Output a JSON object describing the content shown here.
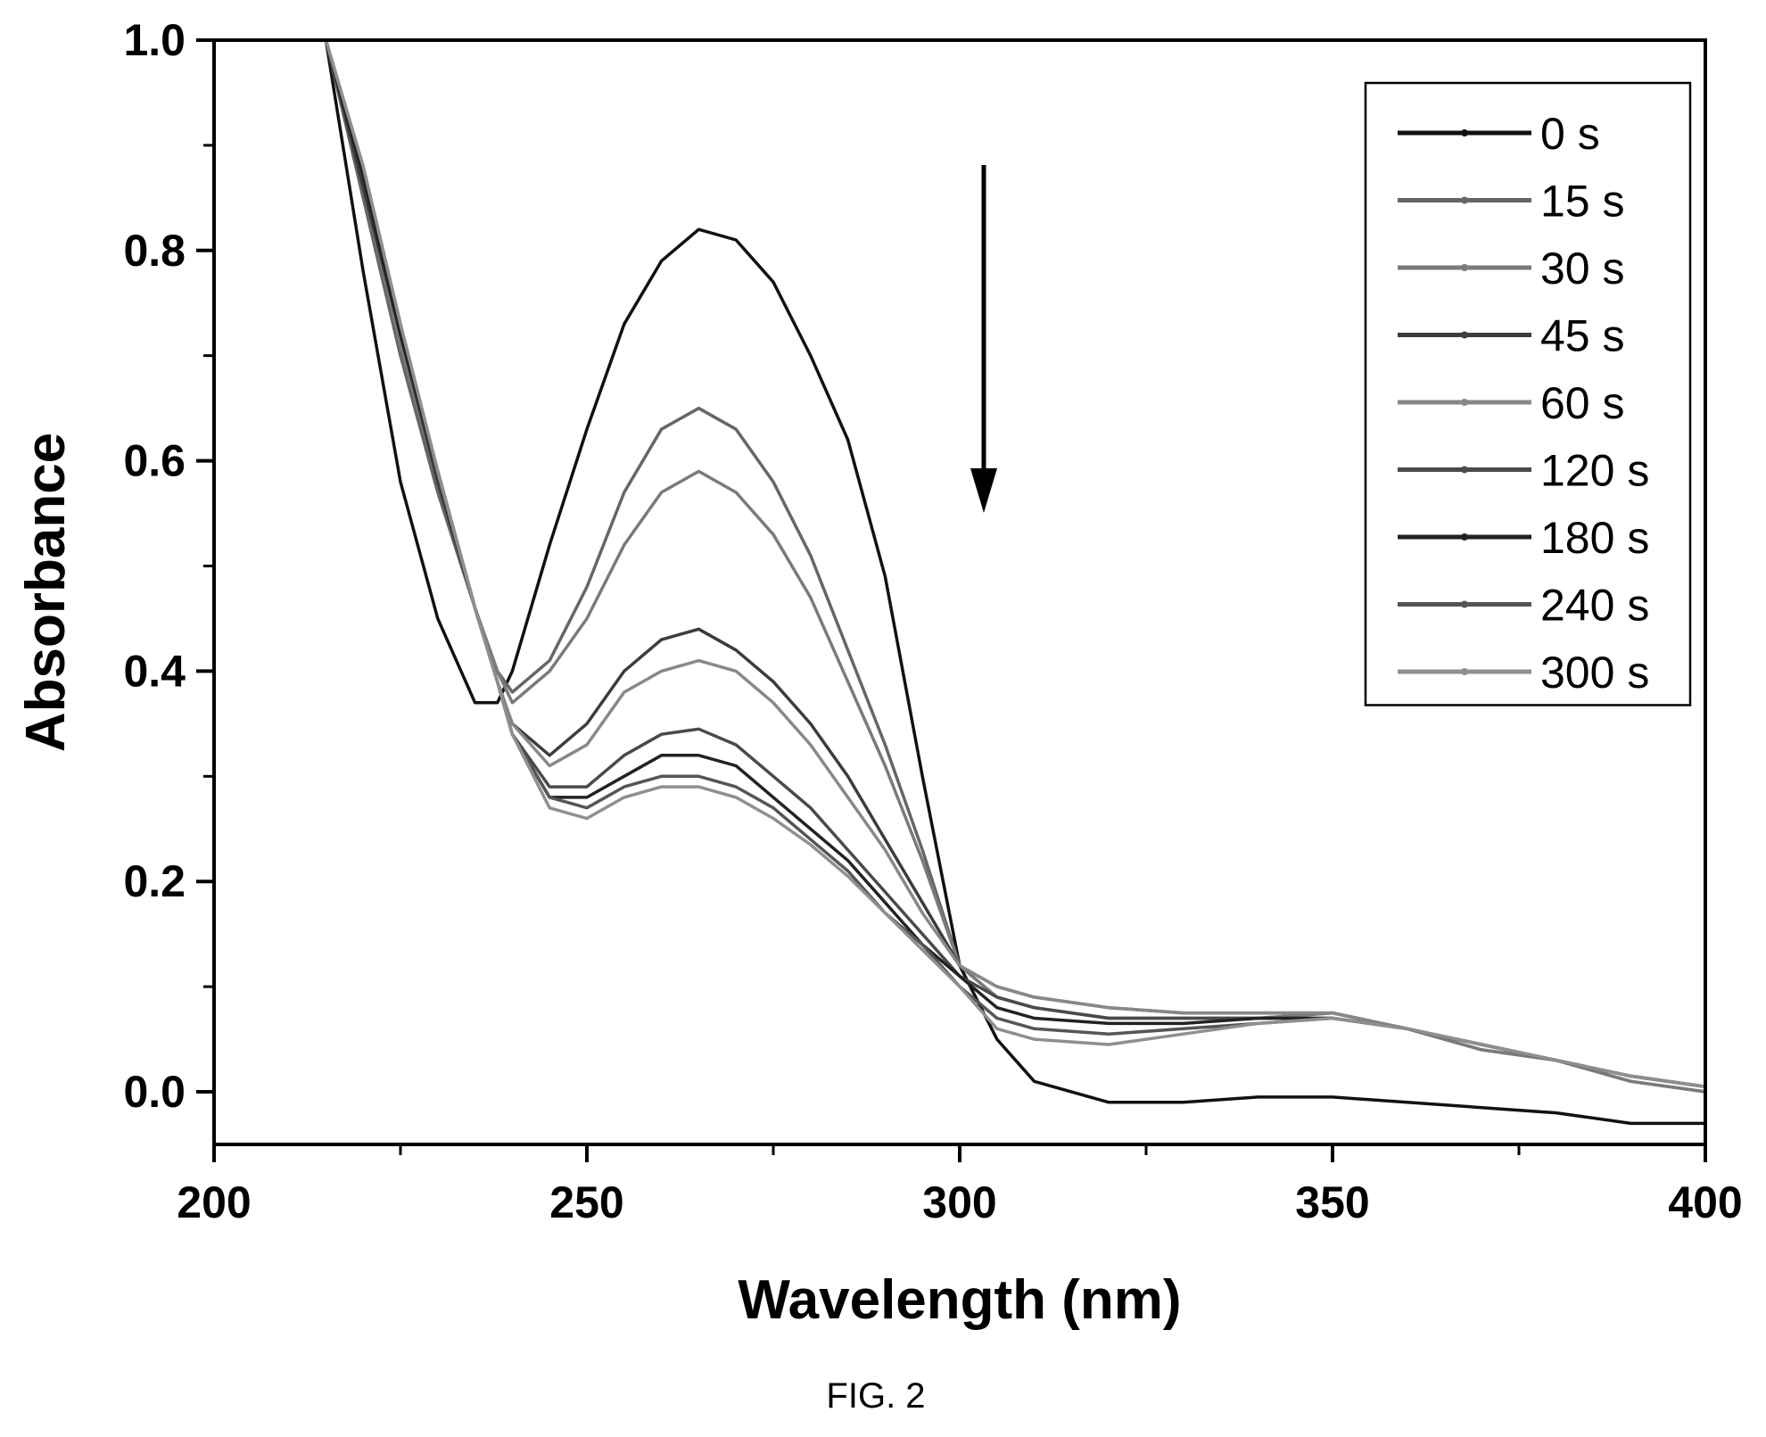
{
  "chart_data": {
    "type": "line",
    "xlabel": "Wavelength (nm)",
    "ylabel": "Absorbance",
    "xlim": [
      200,
      400
    ],
    "ylim": [
      -0.05,
      1.0
    ],
    "x_ticks": [
      200,
      250,
      300,
      350,
      400
    ],
    "y_ticks": [
      0.0,
      0.2,
      0.4,
      0.6,
      0.8,
      1.0
    ],
    "x_tick_labels": [
      "200",
      "250",
      "300",
      "350",
      "400"
    ],
    "y_tick_labels": [
      "0.0",
      "0.2",
      "0.4",
      "0.6",
      "0.8",
      "1.0"
    ],
    "grid": false,
    "legend_position": "top-right",
    "annotation": "downward arrow indicating decreasing absorbance over time",
    "x": [
      215,
      220,
      225,
      230,
      235,
      238,
      240,
      245,
      250,
      255,
      260,
      265,
      270,
      275,
      280,
      285,
      290,
      295,
      300,
      305,
      310,
      320,
      330,
      340,
      350,
      360,
      370,
      380,
      390,
      400
    ],
    "series": [
      {
        "name": "0 s",
        "color": "#111111",
        "values": [
          1.0,
          0.78,
          0.58,
          0.45,
          0.37,
          0.37,
          0.4,
          0.52,
          0.63,
          0.73,
          0.79,
          0.82,
          0.81,
          0.77,
          0.7,
          0.62,
          0.49,
          0.3,
          0.12,
          0.05,
          0.01,
          -0.01,
          -0.01,
          -0.005,
          -0.005,
          -0.01,
          -0.015,
          -0.02,
          -0.03,
          -0.03
        ]
      },
      {
        "name": "15 s",
        "color": "#666666",
        "values": [
          1.0,
          0.85,
          0.7,
          0.57,
          0.46,
          0.4,
          0.38,
          0.41,
          0.48,
          0.57,
          0.63,
          0.65,
          0.63,
          0.58,
          0.51,
          0.42,
          0.33,
          0.23,
          0.12,
          0.09,
          0.08,
          0.07,
          0.07,
          0.07,
          0.075,
          0.06,
          0.04,
          0.03,
          0.01,
          0.0
        ]
      },
      {
        "name": "30 s",
        "color": "#7a7a7a",
        "values": [
          1.0,
          0.86,
          0.71,
          0.58,
          0.46,
          0.4,
          0.37,
          0.4,
          0.45,
          0.52,
          0.57,
          0.59,
          0.57,
          0.53,
          0.47,
          0.39,
          0.31,
          0.22,
          0.12,
          0.09,
          0.08,
          0.07,
          0.07,
          0.07,
          0.075,
          0.06,
          0.04,
          0.03,
          0.01,
          0.0
        ]
      },
      {
        "name": "45 s",
        "color": "#3c3c3c",
        "values": [
          1.0,
          0.86,
          0.72,
          0.58,
          0.46,
          0.39,
          0.35,
          0.32,
          0.35,
          0.4,
          0.43,
          0.44,
          0.42,
          0.39,
          0.35,
          0.3,
          0.24,
          0.18,
          0.12,
          0.1,
          0.09,
          0.08,
          0.075,
          0.075,
          0.075,
          0.06,
          0.045,
          0.03,
          0.015,
          0.005
        ]
      },
      {
        "name": "60 s",
        "color": "#888888",
        "values": [
          1.0,
          0.87,
          0.72,
          0.59,
          0.46,
          0.39,
          0.35,
          0.31,
          0.33,
          0.38,
          0.4,
          0.41,
          0.4,
          0.37,
          0.33,
          0.28,
          0.23,
          0.17,
          0.12,
          0.1,
          0.09,
          0.08,
          0.075,
          0.075,
          0.075,
          0.06,
          0.045,
          0.03,
          0.015,
          0.005
        ]
      },
      {
        "name": "120 s",
        "color": "#4a4a4a",
        "values": [
          1.0,
          0.87,
          0.72,
          0.59,
          0.46,
          0.39,
          0.34,
          0.29,
          0.29,
          0.32,
          0.34,
          0.345,
          0.33,
          0.3,
          0.27,
          0.23,
          0.19,
          0.15,
          0.11,
          0.09,
          0.08,
          0.07,
          0.07,
          0.07,
          0.07,
          0.06,
          0.045,
          0.03,
          0.015,
          0.005
        ]
      },
      {
        "name": "180 s",
        "color": "#222222",
        "values": [
          1.0,
          0.87,
          0.72,
          0.59,
          0.46,
          0.39,
          0.34,
          0.28,
          0.28,
          0.3,
          0.32,
          0.32,
          0.31,
          0.28,
          0.25,
          0.22,
          0.18,
          0.14,
          0.11,
          0.08,
          0.07,
          0.065,
          0.065,
          0.07,
          0.07,
          0.06,
          0.045,
          0.03,
          0.015,
          0.005
        ]
      },
      {
        "name": "240 s",
        "color": "#555555",
        "values": [
          1.0,
          0.88,
          0.73,
          0.59,
          0.46,
          0.39,
          0.34,
          0.28,
          0.27,
          0.29,
          0.3,
          0.3,
          0.29,
          0.27,
          0.24,
          0.21,
          0.17,
          0.14,
          0.1,
          0.07,
          0.06,
          0.055,
          0.06,
          0.065,
          0.07,
          0.06,
          0.045,
          0.03,
          0.015,
          0.005
        ]
      },
      {
        "name": "300 s",
        "color": "#8f8f8f",
        "values": [
          1.0,
          0.88,
          0.73,
          0.59,
          0.46,
          0.39,
          0.34,
          0.27,
          0.26,
          0.28,
          0.29,
          0.29,
          0.28,
          0.26,
          0.235,
          0.205,
          0.17,
          0.135,
          0.1,
          0.06,
          0.05,
          0.045,
          0.055,
          0.065,
          0.07,
          0.06,
          0.045,
          0.03,
          0.015,
          0.005
        ]
      }
    ]
  },
  "caption": "FIG. 2"
}
